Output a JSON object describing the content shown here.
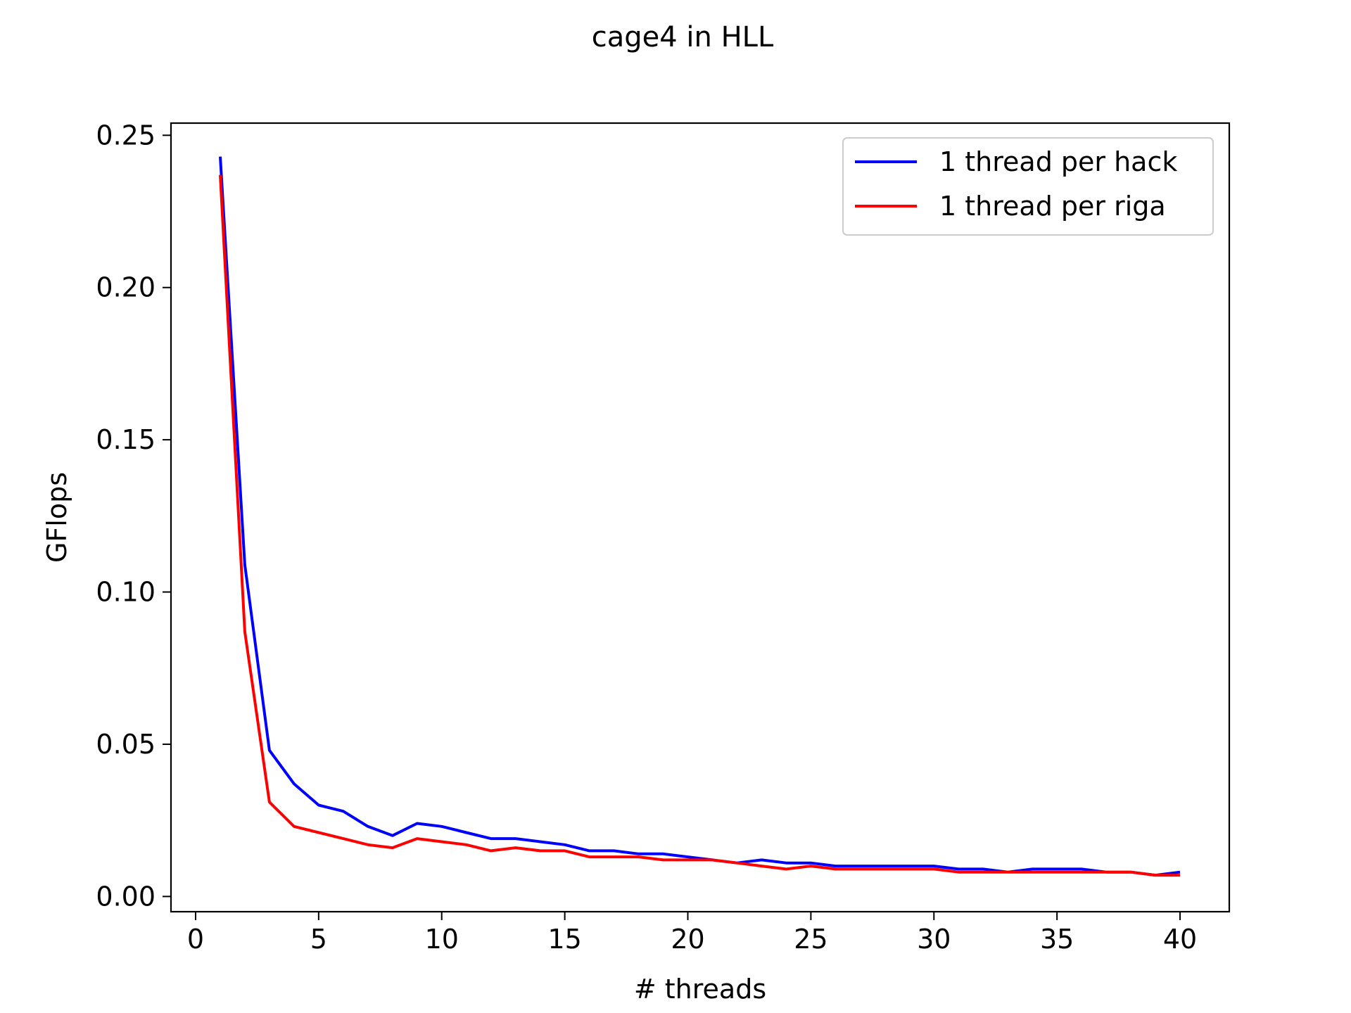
{
  "chart_data": {
    "type": "line",
    "title": "cage4 in HLL",
    "xlabel": "# threads",
    "ylabel": "GFlops",
    "xlim": [
      -1,
      42
    ],
    "ylim": [
      -0.005,
      0.254
    ],
    "xticks": [
      0,
      5,
      10,
      15,
      20,
      25,
      30,
      35,
      40
    ],
    "xtick_labels": [
      "0",
      "5",
      "10",
      "15",
      "20",
      "25",
      "30",
      "35",
      "40"
    ],
    "yticks": [
      0.0,
      0.05,
      0.1,
      0.15,
      0.2,
      0.25
    ],
    "ytick_labels": [
      "0.00",
      "0.05",
      "0.10",
      "0.15",
      "0.20",
      "0.25"
    ],
    "grid": false,
    "legend_position": "upper right",
    "x": [
      1,
      2,
      3,
      4,
      5,
      6,
      7,
      8,
      9,
      10,
      11,
      12,
      13,
      14,
      15,
      16,
      17,
      18,
      19,
      20,
      21,
      22,
      23,
      24,
      25,
      26,
      27,
      28,
      29,
      30,
      31,
      32,
      33,
      34,
      35,
      36,
      37,
      38,
      39,
      40
    ],
    "series": [
      {
        "name": "1 thread per hack",
        "color": "#0000ff",
        "values": [
          0.243,
          0.109,
          0.048,
          0.037,
          0.03,
          0.028,
          0.023,
          0.02,
          0.024,
          0.023,
          0.021,
          0.019,
          0.019,
          0.018,
          0.017,
          0.015,
          0.015,
          0.014,
          0.014,
          0.013,
          0.012,
          0.011,
          0.012,
          0.011,
          0.011,
          0.01,
          0.01,
          0.01,
          0.01,
          0.01,
          0.009,
          0.009,
          0.008,
          0.009,
          0.009,
          0.009,
          0.008,
          0.008,
          0.007,
          0.008
        ]
      },
      {
        "name": "1 thread per riga",
        "color": "#ff0000",
        "values": [
          0.237,
          0.087,
          0.031,
          0.023,
          0.021,
          0.019,
          0.017,
          0.016,
          0.019,
          0.018,
          0.017,
          0.015,
          0.016,
          0.015,
          0.015,
          0.013,
          0.013,
          0.013,
          0.012,
          0.012,
          0.012,
          0.011,
          0.01,
          0.009,
          0.01,
          0.009,
          0.009,
          0.009,
          0.009,
          0.009,
          0.008,
          0.008,
          0.008,
          0.008,
          0.008,
          0.008,
          0.008,
          0.008,
          0.007,
          0.007
        ]
      }
    ]
  }
}
